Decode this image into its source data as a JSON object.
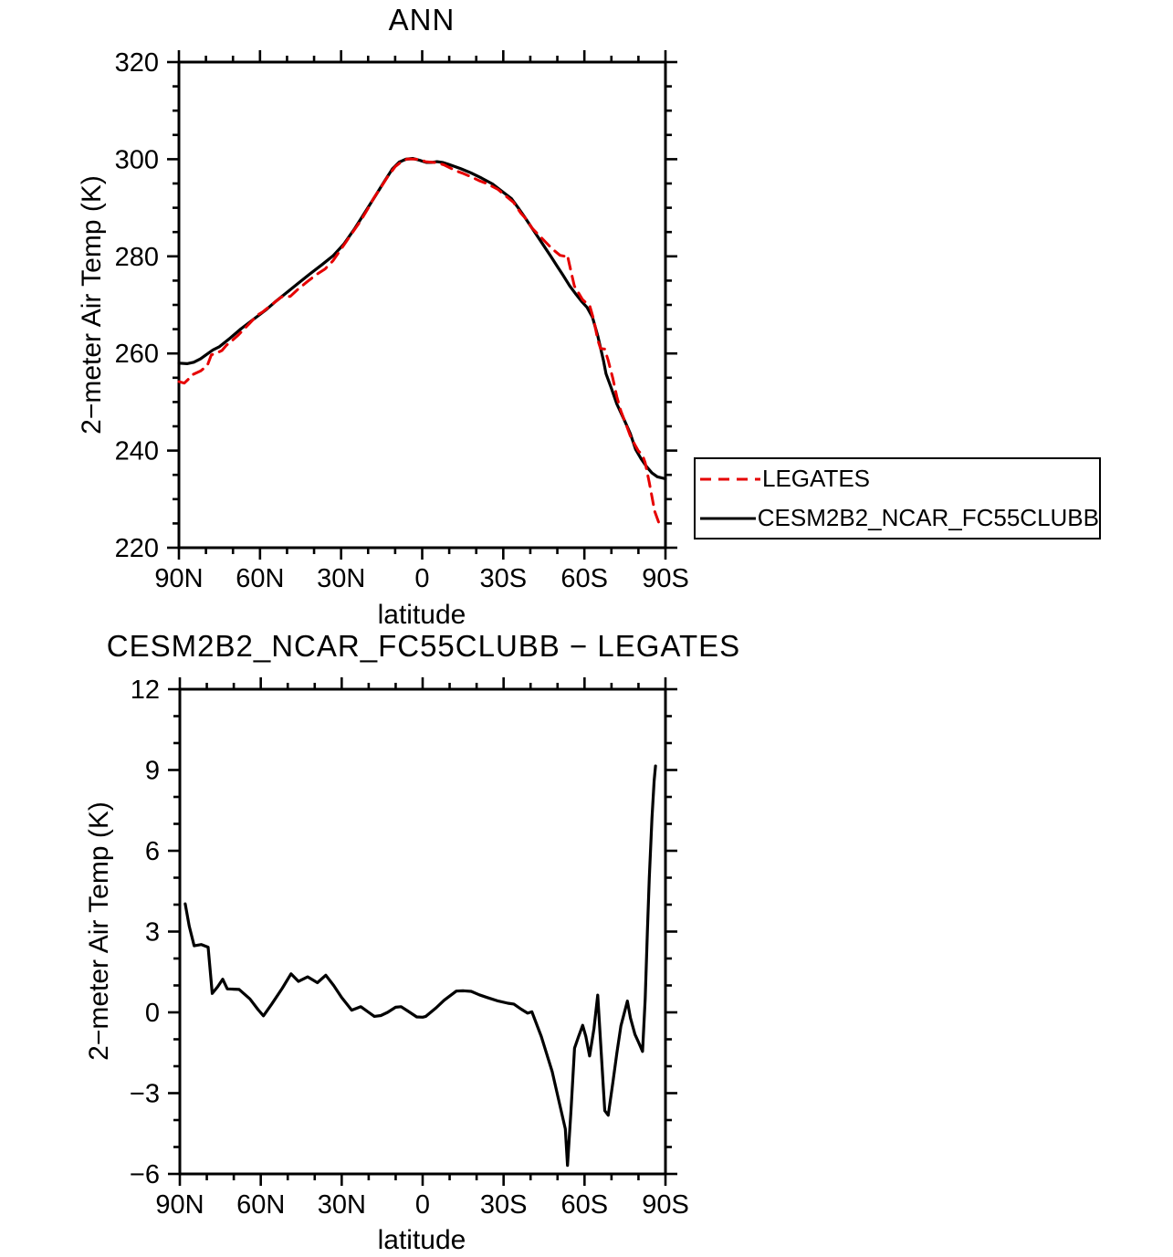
{
  "figure": {
    "background": "#ffffff",
    "text_color": "#000000"
  },
  "chart_data": [
    {
      "type": "line",
      "title": "ANN",
      "xlabel": "latitude",
      "ylabel": "2−meter Air Temp (K)",
      "xlim": [
        90,
        -90
      ],
      "ylim": [
        220,
        320
      ],
      "xticks": [
        {
          "v": 90,
          "label": "90N"
        },
        {
          "v": 60,
          "label": "60N"
        },
        {
          "v": 30,
          "label": "30N"
        },
        {
          "v": 0,
          "label": "0"
        },
        {
          "v": -30,
          "label": "30S"
        },
        {
          "v": -60,
          "label": "60S"
        },
        {
          "v": -90,
          "label": "90S"
        }
      ],
      "xminor_step": 10,
      "yticks": [
        220,
        240,
        260,
        280,
        300,
        320
      ],
      "ytick_labels": [
        "220",
        "240",
        "260",
        "280",
        "300",
        "320"
      ],
      "yminor_step": 5,
      "grid": false,
      "legend": {
        "position": "outside-right",
        "entries": [
          "LEGATES",
          "CESM2B2_NCAR_FC55CLUBB"
        ]
      },
      "series": [
        {
          "name": "CESM2B2_NCAR_FC55CLUBB",
          "color": "#000000",
          "dash": null,
          "width": 3.2,
          "x": [
            90,
            87,
            84.5,
            82,
            80,
            77.5,
            75,
            71,
            67,
            62.5,
            58,
            54,
            50,
            46,
            41.5,
            37,
            33,
            29,
            25,
            21,
            17.5,
            14,
            11,
            8.5,
            6,
            3.5,
            1,
            0,
            -1.5,
            -3.5,
            -5.5,
            -7.5,
            -10,
            -14,
            -18,
            -22,
            -26,
            -30,
            -33,
            -35.5,
            -38,
            -41,
            -44,
            -47.6,
            -50,
            -52,
            -54.6,
            -57,
            -59,
            -61,
            -63,
            -65,
            -67,
            -68,
            -70,
            -72,
            -75,
            -77,
            -79,
            -81,
            -83,
            -85,
            -87,
            -90
          ],
          "y": [
            258.0,
            257.9,
            258.2,
            258.9,
            259.7,
            260.7,
            261.4,
            263.2,
            265.1,
            267.0,
            268.9,
            270.8,
            272.6,
            274.4,
            276.4,
            278.3,
            280.1,
            282.5,
            285.7,
            289.2,
            292.3,
            295.4,
            298.0,
            299.4,
            300.0,
            300.15,
            299.8,
            299.6,
            299.35,
            299.35,
            299.5,
            299.35,
            298.9,
            298.1,
            297.2,
            296.1,
            294.9,
            293.2,
            291.9,
            290.0,
            288.0,
            285.5,
            283.0,
            280.0,
            277.9,
            276.2,
            273.9,
            272.1,
            270.7,
            269.5,
            267.5,
            263.5,
            258.7,
            255.8,
            252.8,
            249.6,
            246.0,
            243.5,
            240.2,
            238.3,
            236.7,
            235.4,
            234.6,
            234.2
          ]
        },
        {
          "name": "LEGATES",
          "color": "#e60000",
          "dash": [
            12,
            8
          ],
          "width": 3,
          "x": [
            90,
            88,
            86.5,
            84.7,
            82,
            79.5,
            78,
            76,
            74.1,
            72.4,
            70,
            68,
            64,
            61,
            59,
            56,
            52,
            48.8,
            46,
            42.6,
            39,
            35.9,
            33,
            30,
            26.3,
            22.9,
            20,
            17.9,
            15.5,
            13,
            10,
            8,
            5.5,
            2.2,
            0,
            -1.2,
            -5,
            -8,
            -12.5,
            -15,
            -18,
            -21,
            -24,
            -28,
            -31.6,
            -33.8,
            -36.5,
            -38.9,
            -40.5,
            -44,
            -48,
            -51,
            -52.9,
            -53.7,
            -55,
            -56.3,
            -57.8,
            -59.3,
            -60.5,
            -61.9,
            -63.5,
            -64.9,
            -66,
            -67.5,
            -68.8,
            -70.5,
            -72,
            -73.5,
            -75.9,
            -77,
            -78.7,
            -80,
            -81.5,
            -82.5,
            -84,
            -86,
            -87.5
          ],
          "y": [
            254.2,
            253.9,
            254.7,
            255.7,
            256.4,
            257.5,
            259.7,
            260.1,
            260.6,
            261.7,
            262.8,
            263.8,
            266.1,
            267.9,
            268.55,
            269.9,
            271.65,
            271.75,
            273.2,
            274.75,
            276.3,
            277.4,
            279.1,
            281.5,
            284.5,
            287.2,
            289.9,
            292.0,
            294.0,
            296.2,
            298.45,
            299.35,
            300.05,
            300.0,
            299.8,
            299.5,
            299.3,
            298.85,
            297.6,
            297.1,
            296.4,
            295.6,
            294.95,
            293.8,
            292.1,
            291.1,
            288.9,
            287.4,
            285.9,
            283.9,
            281.6,
            280.2,
            280.0,
            280.3,
            277.0,
            273.9,
            272.5,
            271.1,
            270.5,
            270.0,
            266.9,
            262.9,
            261.0,
            260.9,
            258.6,
            254.9,
            251.1,
            248.2,
            244.7,
            243.0,
            241.2,
            239.9,
            239.1,
            237.5,
            233.5,
            227.5,
            225.2
          ]
        }
      ]
    },
    {
      "type": "line",
      "title": "CESM2B2_NCAR_FC55CLUBB − LEGATES",
      "xlabel": "latitude",
      "ylabel": "2−meter Air Temp (K)",
      "xlim": [
        90,
        -90
      ],
      "ylim": [
        -6,
        12
      ],
      "xticks": [
        {
          "v": 90,
          "label": "90N"
        },
        {
          "v": 60,
          "label": "60N"
        },
        {
          "v": 30,
          "label": "30N"
        },
        {
          "v": 0,
          "label": "0"
        },
        {
          "v": -30,
          "label": "30S"
        },
        {
          "v": -60,
          "label": "60S"
        },
        {
          "v": -90,
          "label": "90S"
        }
      ],
      "xminor_step": 10,
      "yticks": [
        -6,
        -3,
        0,
        3,
        6,
        9,
        12
      ],
      "ytick_labels": [
        "−6",
        "−3",
        "0",
        "3",
        "6",
        "9",
        "12"
      ],
      "yminor_step": 1,
      "grid": false,
      "series": [
        {
          "name": "CESM2B2_NCAR_FC55CLUBB − LEGATES",
          "color": "#000000",
          "dash": null,
          "width": 3.2,
          "x": [
            88,
            86.5,
            84.7,
            82,
            79.5,
            78,
            76,
            74.1,
            72.4,
            70,
            68,
            64,
            61,
            59,
            56,
            52,
            48.8,
            46,
            42.6,
            39,
            35.9,
            33,
            30,
            26.3,
            22.9,
            20,
            17.9,
            15.5,
            13,
            10,
            8,
            5.5,
            2.2,
            0,
            -1.2,
            -5,
            -8,
            -12.5,
            -15,
            -18,
            -21,
            -24,
            -28,
            -31.6,
            -33.8,
            -36.5,
            -38.9,
            -40.5,
            -44,
            -48,
            -51,
            -52.9,
            -53.7,
            -55,
            -56.3,
            -57.8,
            -59.3,
            -60.5,
            -61.9,
            -63.5,
            -64.9,
            -66,
            -67.5,
            -68.8,
            -70.5,
            -72,
            -73.5,
            -75.9,
            -77,
            -78.7,
            -80,
            -81.5,
            -82.5,
            -83.3,
            -84,
            -85,
            -85.8,
            -86.3
          ],
          "y": [
            4.03,
            3.2,
            2.47,
            2.52,
            2.42,
            0.7,
            0.95,
            1.23,
            0.87,
            0.86,
            0.85,
            0.5,
            0.1,
            -0.13,
            0.3,
            0.9,
            1.43,
            1.15,
            1.32,
            1.1,
            1.38,
            1.0,
            0.55,
            0.08,
            0.21,
            0.0,
            -0.15,
            -0.12,
            0.0,
            0.19,
            0.21,
            0.05,
            -0.17,
            -0.18,
            -0.15,
            0.17,
            0.45,
            0.79,
            0.8,
            0.78,
            0.65,
            0.55,
            0.42,
            0.34,
            0.31,
            0.12,
            -0.03,
            0.02,
            -0.9,
            -2.2,
            -3.5,
            -4.33,
            -5.68,
            -3.6,
            -1.33,
            -0.9,
            -0.48,
            -0.9,
            -1.62,
            -0.6,
            0.64,
            -1.2,
            -3.65,
            -3.82,
            -2.6,
            -1.5,
            -0.5,
            0.42,
            -0.2,
            -0.82,
            -1.1,
            -1.45,
            0.5,
            3.0,
            5.0,
            7.2,
            8.6,
            9.15
          ]
        }
      ]
    }
  ]
}
